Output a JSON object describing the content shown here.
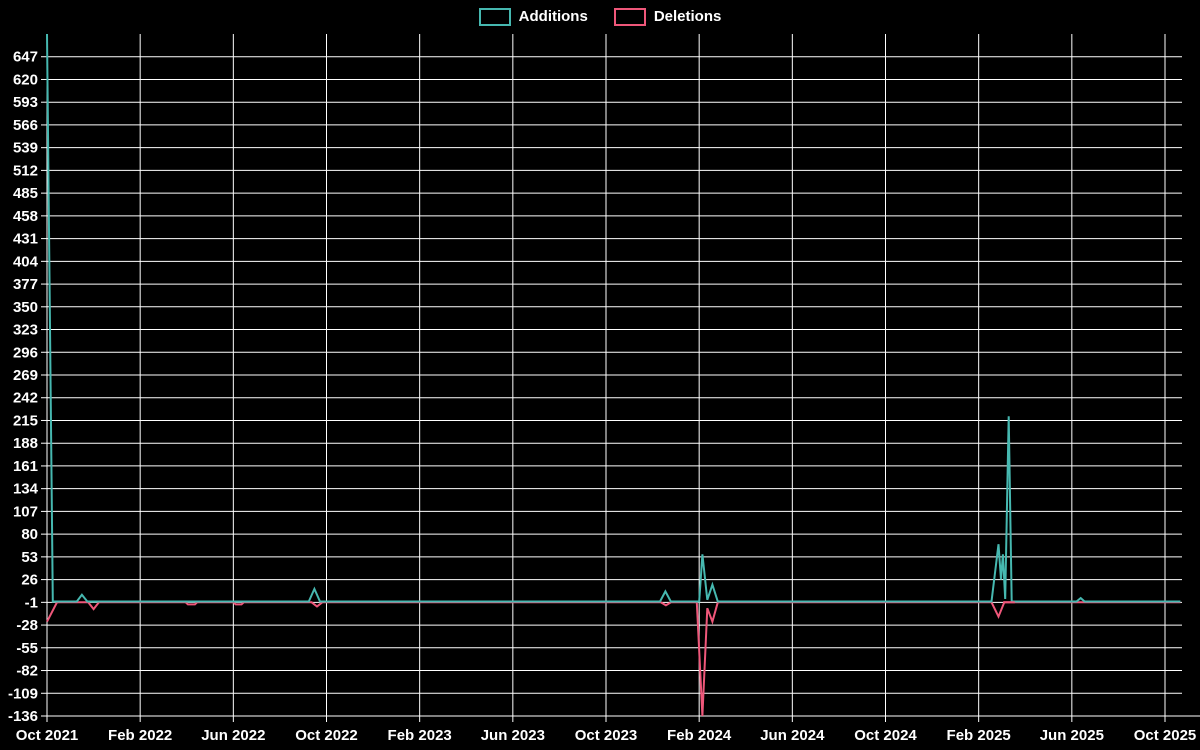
{
  "legend": {
    "items": [
      {
        "label": "Additions",
        "color": "#46b8b0"
      },
      {
        "label": "Deletions",
        "color": "#ef577a"
      }
    ]
  },
  "chart_data": {
    "type": "line",
    "title": "",
    "xlabel": "",
    "ylabel": "",
    "legend_position": "top-center",
    "grid": true,
    "background_color": "#000000",
    "grid_color": "#ffffff",
    "text_color": "#ffffff",
    "x_axis": {
      "unit": "months since Oct 2021",
      "tick_labels": [
        "Oct 2021",
        "Feb 2022",
        "Jun 2022",
        "Oct 2022",
        "Feb 2023",
        "Jun 2023",
        "Oct 2023",
        "Feb 2024",
        "Jun 2024",
        "Oct 2024",
        "Feb 2025",
        "Jun 2025",
        "Oct 2025"
      ],
      "tick_months": [
        0,
        4,
        8,
        12,
        16,
        20,
        24,
        28,
        32,
        36,
        40,
        44,
        48
      ],
      "domain": [
        0,
        49.5
      ],
      "data_end_month": 48.66
    },
    "y_axis": {
      "min": -136,
      "max": 674,
      "tick_step": 27,
      "ticks": [
        647,
        620,
        593,
        566,
        539,
        512,
        485,
        458,
        431,
        404,
        377,
        350,
        323,
        296,
        269,
        242,
        215,
        188,
        161,
        134,
        107,
        80,
        53,
        26,
        -1,
        -28,
        -55,
        -82,
        -109,
        -136
      ]
    },
    "series": [
      {
        "name": "Additions",
        "color": "#46b8b0",
        "points": [
          [
            0,
            674
          ],
          [
            0.25,
            0
          ],
          [
            1.28,
            0
          ],
          [
            1.5,
            8
          ],
          [
            1.73,
            0
          ],
          [
            11.24,
            0
          ],
          [
            11.48,
            15
          ],
          [
            11.72,
            0
          ],
          [
            26.32,
            0
          ],
          [
            26.55,
            12
          ],
          [
            26.78,
            0
          ],
          [
            28.0,
            0
          ],
          [
            28.14,
            56
          ],
          [
            28.35,
            2
          ],
          [
            28.57,
            20
          ],
          [
            28.8,
            0
          ],
          [
            40.55,
            0
          ],
          [
            40.85,
            68
          ],
          [
            40.96,
            26
          ],
          [
            41.04,
            56
          ],
          [
            41.14,
            3
          ],
          [
            41.29,
            220
          ],
          [
            41.42,
            0
          ],
          [
            44.2,
            0
          ],
          [
            44.38,
            4
          ],
          [
            44.55,
            0
          ],
          [
            48.66,
            0
          ]
        ]
      },
      {
        "name": "Deletions",
        "color": "#ef577a",
        "points": [
          [
            0,
            -24
          ],
          [
            0.43,
            -1
          ],
          [
            1.77,
            -1
          ],
          [
            2.0,
            -9
          ],
          [
            2.23,
            -1
          ],
          [
            5.95,
            -1
          ],
          [
            6.05,
            -3.5
          ],
          [
            6.35,
            -3.5
          ],
          [
            6.45,
            -1
          ],
          [
            8.0,
            -1
          ],
          [
            8.1,
            -3.5
          ],
          [
            8.35,
            -3.5
          ],
          [
            8.45,
            -1
          ],
          [
            11.36,
            -1
          ],
          [
            11.59,
            -6
          ],
          [
            11.82,
            -1
          ],
          [
            26.35,
            -1
          ],
          [
            26.57,
            -4.5
          ],
          [
            26.79,
            -1
          ],
          [
            27.9,
            -1
          ],
          [
            28.14,
            -136
          ],
          [
            28.35,
            -8
          ],
          [
            28.57,
            -24
          ],
          [
            28.8,
            -1
          ],
          [
            40.55,
            -1
          ],
          [
            40.85,
            -18
          ],
          [
            41.1,
            -1
          ],
          [
            48.66,
            -1
          ]
        ],
        "overlay_segment": [
          [
            41.05,
            -1
          ],
          [
            41.55,
            -1
          ]
        ]
      }
    ]
  }
}
